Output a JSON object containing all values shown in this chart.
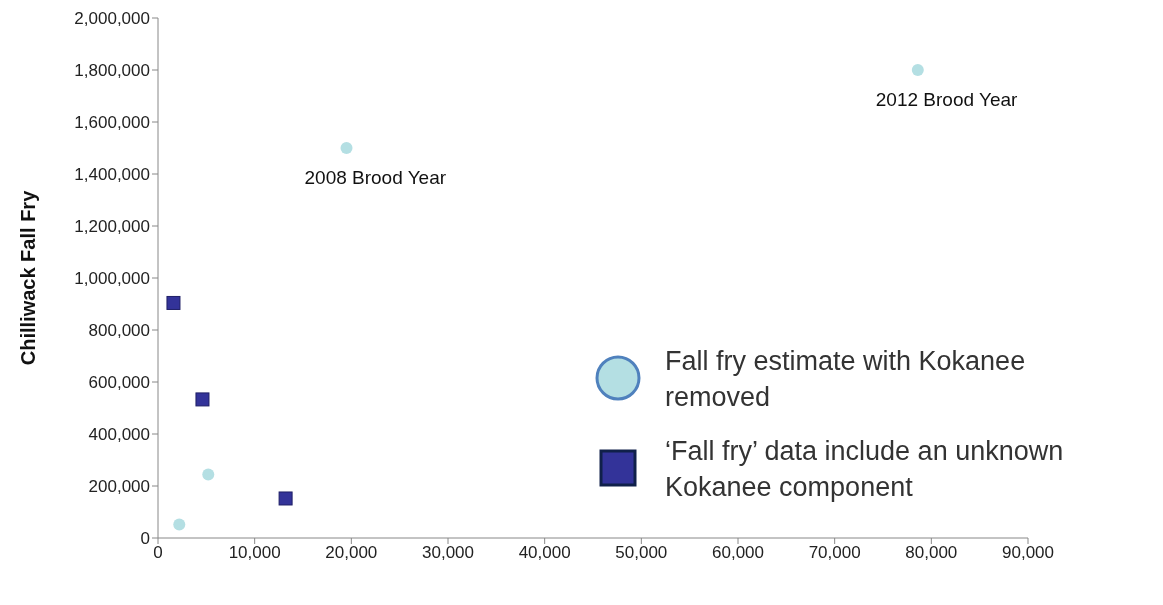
{
  "chart_data": {
    "type": "scatter",
    "ylabel": "Chilliwack Fall Fry",
    "series": [
      {
        "name": "Fall fry estimate with Kokanee removed",
        "color": "#b4dfe3",
        "marker": "circle",
        "x": [
          78600,
          19500,
          5200,
          2200
        ],
        "values": [
          1800000,
          1500000,
          244000,
          52000
        ]
      },
      {
        "name": "‘Fall fry’ data include an unknown Kokanee component",
        "color": "#333399",
        "marker": "square",
        "x": [
          1600,
          4600,
          13200
        ],
        "values": [
          904000,
          533000,
          152000
        ]
      }
    ],
    "xlim": [
      0,
      90000
    ],
    "xticks": [
      0,
      {
        "value": 10000,
        "label": "10,000"
      },
      {
        "value": 20000,
        "label": "20,000"
      },
      {
        "value": 30000,
        "label": "30,000"
      },
      {
        "value": 40000,
        "label": "40,000"
      },
      {
        "value": 50000,
        "label": "50,000"
      },
      {
        "value": 60000,
        "label": "60,000"
      },
      {
        "value": 70000,
        "label": "70,000"
      },
      {
        "value": 80000,
        "label": "80,000"
      },
      {
        "value": 90000,
        "label": "90,000"
      }
    ],
    "ylim": [
      0,
      2000000
    ],
    "yticks": [
      0,
      {
        "value": 200000,
        "label": "200,000"
      },
      {
        "value": 400000,
        "label": "400,000"
      },
      {
        "value": 600000,
        "label": "600,000"
      },
      {
        "value": 800000,
        "label": "800,000"
      },
      {
        "value": 1000000,
        "label": "1,000,000"
      },
      {
        "value": 1200000,
        "label": "1,200,000"
      },
      {
        "value": 1400000,
        "label": "1,400,000"
      },
      {
        "value": 1600000,
        "label": "1,600,000"
      },
      {
        "value": 1800000,
        "label": "1,800,000"
      },
      {
        "value": 2000000,
        "label": "2,000,000"
      }
    ],
    "grid": false,
    "legend": "right",
    "annotations": [
      {
        "text": "2008 Brood Year",
        "x": 19500,
        "y": 1500000
      },
      {
        "text": "2012 Brood Year",
        "x": 78600,
        "y": 1800000
      }
    ]
  }
}
